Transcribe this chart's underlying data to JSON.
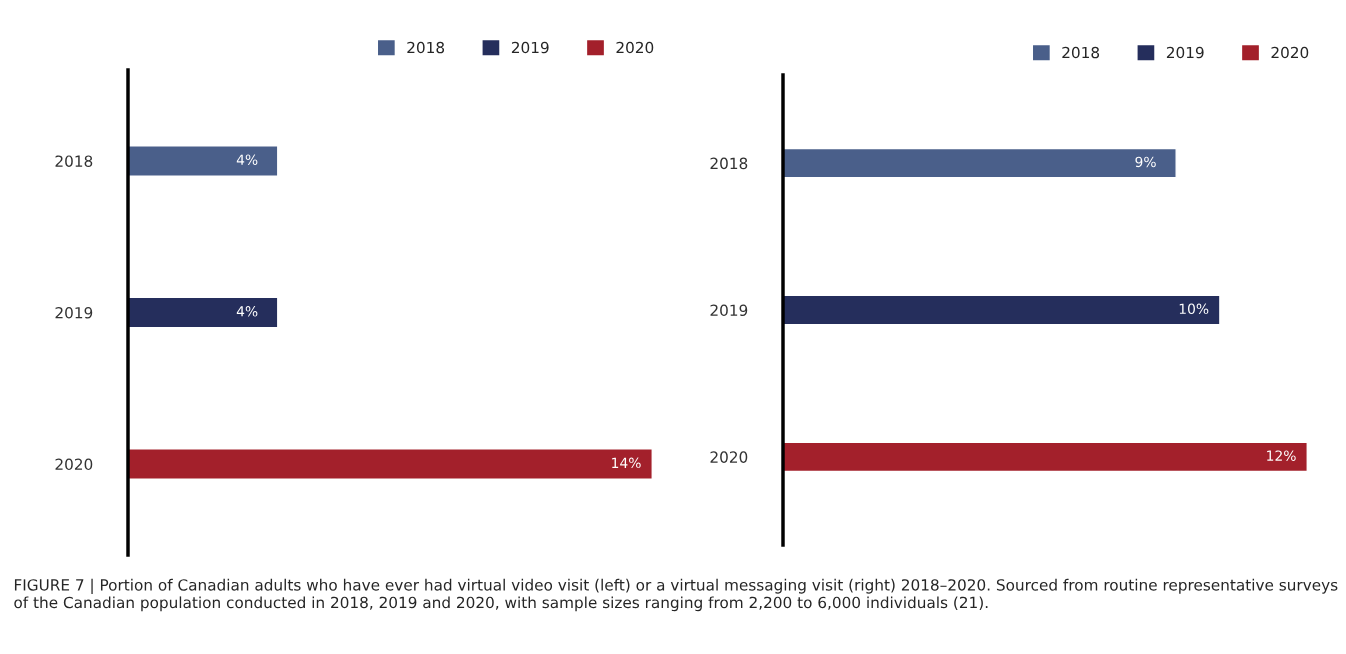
{
  "chart_data": [
    {
      "type": "bar",
      "orientation": "horizontal",
      "categories": [
        "2018",
        "2019",
        "2020"
      ],
      "legend": "top right",
      "grid": false,
      "data_labels": true,
      "tick_labels": "y",
      "series": [
        {
          "name": "2018",
          "color": "#4a5f8a",
          "values": [
            4,
            null,
            null
          ],
          "value_labels": [
            "4%",
            null,
            null
          ]
        },
        {
          "name": "2019",
          "color": "#252e5c",
          "values": [
            null,
            4,
            null
          ],
          "value_labels": [
            null,
            "4%",
            null
          ]
        },
        {
          "name": "2020",
          "color": "#a3202b",
          "values": [
            null,
            null,
            14
          ],
          "value_labels": [
            null,
            null,
            "14%"
          ]
        }
      ],
      "annotations": [
        "FIGURE 7 | Portion of Canadian adults who have ever had virtual video visit (left) or a virtual messaging visit (right) 2018–2020. Sourced from routine representative surveys of the Canadian population conducted in 2018, 2019 and 2020, with sample sizes ranging from 2,200 to 6,000 individuals (21)."
      ]
    },
    {
      "type": "bar",
      "orientation": "horizontal",
      "categories": [
        "2018",
        "2019",
        "2020"
      ],
      "legend": "top right",
      "grid": false,
      "data_labels": true,
      "tick_labels": "y",
      "series": [
        {
          "name": "2018",
          "color": "#4a5f8a",
          "values": [
            9,
            null,
            null
          ],
          "value_labels": [
            "9%",
            null,
            null
          ]
        },
        {
          "name": "2019",
          "color": "#252e5c",
          "values": [
            null,
            10,
            null
          ],
          "value_labels": [
            null,
            "10%",
            null
          ]
        },
        {
          "name": "2020",
          "color": "#a3202b",
          "values": [
            null,
            null,
            12
          ],
          "value_labels": [
            null,
            null,
            "12%"
          ]
        }
      ]
    }
  ]
}
